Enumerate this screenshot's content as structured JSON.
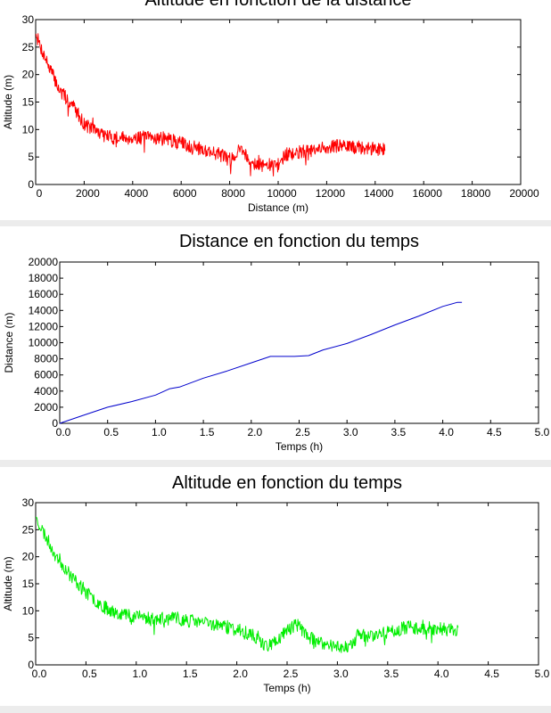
{
  "chart_data": [
    {
      "type": "line",
      "title": "Altitude en fonction de la distance",
      "xlabel": "Distance (m)",
      "ylabel": "Altitude (m)",
      "xlim": [
        0,
        20000
      ],
      "ylim": [
        0,
        30
      ],
      "xticks": [
        "0",
        "2000",
        "4000",
        "6000",
        "8000",
        "10000",
        "12000",
        "14000",
        "16000",
        "18000",
        "20000"
      ],
      "yticks": [
        "0",
        "5",
        "10",
        "15",
        "20",
        "25",
        "30"
      ],
      "grid": false,
      "color": "#ff0000",
      "series": [
        {
          "x": [
            0,
            200,
            500,
            800,
            1000,
            1300,
            1600,
            1800,
            2000,
            2400,
            2800,
            3200,
            3600,
            4000,
            4400,
            4800,
            5200,
            5600,
            6000,
            6400,
            6800,
            7200,
            7600,
            7800,
            8000,
            8200,
            8400,
            8500,
            8800,
            9200,
            9600,
            10000,
            10300,
            10600,
            11000,
            11400,
            11800,
            12200,
            12600,
            13000,
            13400,
            13800,
            14200,
            14400
          ],
          "y": [
            27.5,
            25,
            22,
            19,
            17,
            15.5,
            14,
            12.5,
            11,
            10,
            9,
            8.5,
            8.5,
            8.5,
            8.5,
            8.5,
            8.5,
            8.0,
            7.5,
            7.0,
            6.5,
            6.0,
            5.5,
            5.0,
            4.5,
            5.5,
            6.5,
            6.5,
            4.5,
            3.5,
            3.5,
            3.5,
            5.5,
            5.5,
            6.0,
            6.0,
            6.5,
            7.0,
            7.0,
            6.8,
            6.6,
            6.5,
            6.5,
            6.5
          ]
        }
      ]
    },
    {
      "type": "line",
      "title": "Distance en fonction du temps",
      "xlabel": "Temps (h)",
      "ylabel": "Distance (m)",
      "xlim": [
        0,
        5
      ],
      "ylim": [
        0,
        20000
      ],
      "xticks": [
        "0.0",
        "0.5",
        "1.0",
        "1.5",
        "2.0",
        "2.5",
        "3.0",
        "3.5",
        "4.0",
        "4.5",
        "5.0"
      ],
      "yticks": [
        "0",
        "2000",
        "4000",
        "6000",
        "8000",
        "10000",
        "12000",
        "14000",
        "16000",
        "18000",
        "20000"
      ],
      "grid": false,
      "color": "#0000cc",
      "series": [
        {
          "x": [
            0,
            0.25,
            0.5,
            0.75,
            1.0,
            1.15,
            1.25,
            1.5,
            1.75,
            2.0,
            2.2,
            2.3,
            2.45,
            2.6,
            2.75,
            3.0,
            3.25,
            3.5,
            3.75,
            4.0,
            4.15,
            4.2
          ],
          "y": [
            0,
            1000,
            2000,
            2700,
            3500,
            4300,
            4500,
            5600,
            6500,
            7500,
            8300,
            8300,
            8300,
            8400,
            9100,
            9900,
            11000,
            12200,
            13300,
            14500,
            15000,
            15000
          ]
        }
      ]
    },
    {
      "type": "line",
      "title": "Altitude en fonction du temps",
      "xlabel": "Temps (h)",
      "ylabel": "Altitude (m)",
      "xlim": [
        0,
        5
      ],
      "ylim": [
        0,
        30
      ],
      "xticks": [
        "0.0",
        "0.5",
        "1.0",
        "1.5",
        "2.0",
        "2.5",
        "3.0",
        "3.5",
        "4.0",
        "4.5",
        "5.0"
      ],
      "yticks": [
        "0",
        "5",
        "10",
        "15",
        "20",
        "25",
        "30"
      ],
      "grid": false,
      "color": "#00ee00",
      "series": [
        {
          "x": [
            0,
            0.05,
            0.15,
            0.25,
            0.35,
            0.45,
            0.55,
            0.7,
            0.85,
            1.0,
            1.2,
            1.4,
            1.6,
            1.8,
            2.0,
            2.15,
            2.3,
            2.4,
            2.5,
            2.6,
            2.7,
            2.8,
            3.0,
            3.15,
            3.2,
            3.35,
            3.5,
            3.7,
            3.9,
            4.1,
            4.2
          ],
          "y": [
            27.5,
            25.5,
            22,
            19,
            16.5,
            14.5,
            12.5,
            10.5,
            9.5,
            9,
            8.5,
            8.5,
            8,
            7.5,
            6.5,
            5.5,
            3.5,
            4.5,
            6.5,
            7.5,
            5.5,
            4,
            3.5,
            3.5,
            5.5,
            5.5,
            6,
            7,
            6.8,
            6.5,
            6.5
          ]
        }
      ]
    }
  ]
}
